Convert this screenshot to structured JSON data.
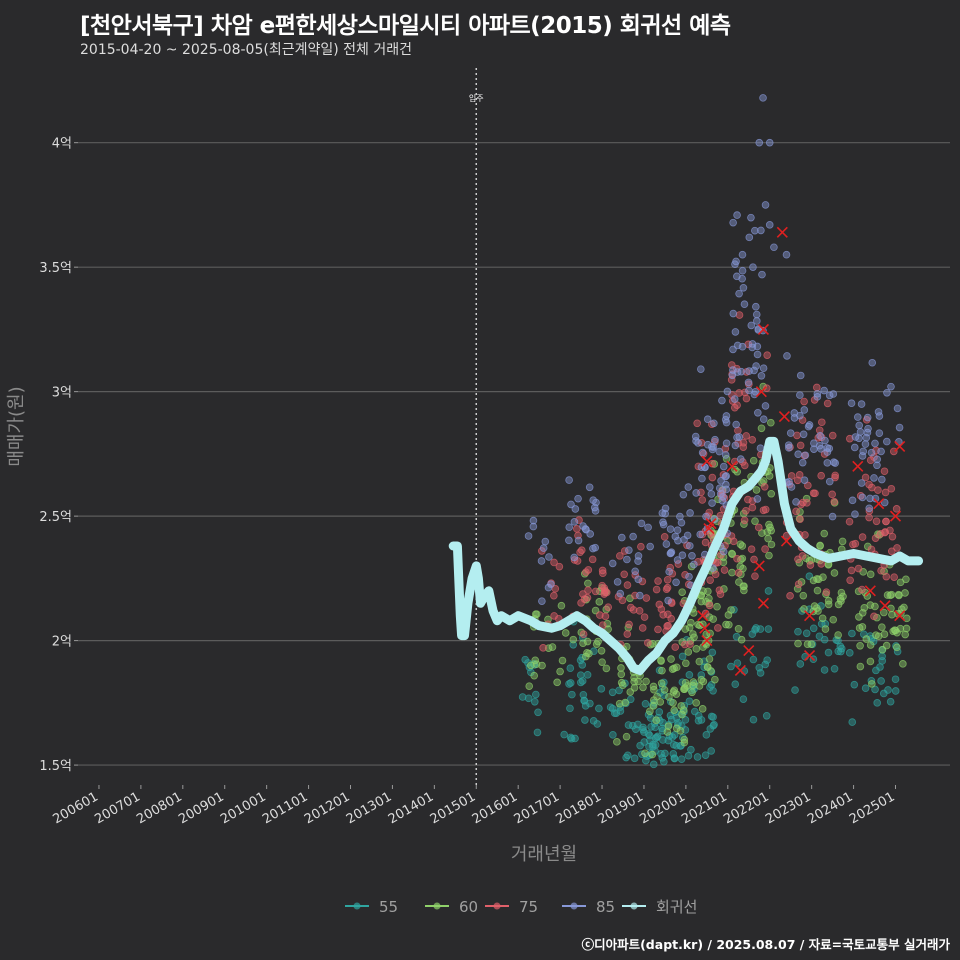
{
  "title": "[천안서북구] 차암 e편한세상스마일시티 아파트(2015) 회귀선 예측",
  "subtitle": "2015-04-20 ~ 2025-08-05(최근계약일) 전체 거래건",
  "footer": "ⓒ디아파트(dapt.kr) / 2025.08.07 / 자료=국토교통부 실거래가",
  "colors": {
    "background": "#2a2a2c",
    "grid": "#5c5c5c",
    "s55": "#2fa5a0",
    "s60": "#8fd16a",
    "s75": "#e0606a",
    "s85": "#8898d8",
    "trend": "#b4eef0",
    "marker": "#e02020"
  },
  "chart_data": {
    "type": "scatter",
    "title": "[천안서북구] 차암 e편한세상스마일시티 아파트(2015) 회귀선 예측",
    "xlabel": "거래년월",
    "ylabel": "매매가(원)",
    "xlim": [
      2005.5,
      2026.3
    ],
    "ylim": [
      1.42,
      4.3
    ],
    "x_ticks": [
      {
        "value": 2006.0,
        "label": "200601"
      },
      {
        "value": 2007.0,
        "label": "200701"
      },
      {
        "value": 2008.0,
        "label": "200801"
      },
      {
        "value": 2009.0,
        "label": "200901"
      },
      {
        "value": 2010.0,
        "label": "201001"
      },
      {
        "value": 2011.0,
        "label": "201101"
      },
      {
        "value": 2012.0,
        "label": "201201"
      },
      {
        "value": 2013.0,
        "label": "201301"
      },
      {
        "value": 2014.0,
        "label": "201401"
      },
      {
        "value": 2015.0,
        "label": "201501"
      },
      {
        "value": 2016.0,
        "label": "201601"
      },
      {
        "value": 2017.0,
        "label": "201701"
      },
      {
        "value": 2018.0,
        "label": "201801"
      },
      {
        "value": 2019.0,
        "label": "201901"
      },
      {
        "value": 2020.0,
        "label": "202001"
      },
      {
        "value": 2021.0,
        "label": "202101"
      },
      {
        "value": 2022.0,
        "label": "202201"
      },
      {
        "value": 2023.0,
        "label": "202301"
      },
      {
        "value": 2024.0,
        "label": "202401"
      },
      {
        "value": 2025.0,
        "label": "202501"
      }
    ],
    "y_ticks": [
      {
        "value": 1.5,
        "label": "1.5억"
      },
      {
        "value": 2.0,
        "label": "2억"
      },
      {
        "value": 2.5,
        "label": "2.5억"
      },
      {
        "value": 3.0,
        "label": "3억"
      },
      {
        "value": 3.5,
        "label": "3.5억"
      },
      {
        "value": 4.0,
        "label": "4억"
      }
    ],
    "annotation": {
      "x": 2015.0,
      "label": "입주"
    },
    "legend": {
      "position": "bottom",
      "entries": [
        {
          "label": "55",
          "key": "s55"
        },
        {
          "label": "60",
          "key": "s60"
        },
        {
          "label": "75",
          "key": "s75"
        },
        {
          "label": "85",
          "key": "s85"
        },
        {
          "label": "회귀선",
          "key": "trend"
        }
      ]
    },
    "series": [
      {
        "name": "55",
        "key": "s55",
        "clusters": [
          [
            2016.3,
            1.8,
            0.5,
            0.1,
            12
          ],
          [
            2017.5,
            1.8,
            1.0,
            0.12,
            30
          ],
          [
            2018.8,
            1.65,
            1.2,
            0.1,
            45
          ],
          [
            2019.5,
            1.62,
            0.8,
            0.09,
            45
          ],
          [
            2020.3,
            1.75,
            0.8,
            0.12,
            40
          ],
          [
            2021.5,
            1.95,
            1.0,
            0.12,
            20
          ],
          [
            2023.2,
            2.0,
            1.2,
            0.12,
            25
          ],
          [
            2024.5,
            1.9,
            1.2,
            0.1,
            25
          ]
        ]
      },
      {
        "name": "60",
        "key": "s60",
        "clusters": [
          [
            2016.7,
            2.0,
            0.9,
            0.12,
            18
          ],
          [
            2017.7,
            2.05,
            0.9,
            0.13,
            25
          ],
          [
            2018.8,
            1.85,
            0.9,
            0.12,
            30
          ],
          [
            2019.6,
            1.78,
            0.8,
            0.12,
            35
          ],
          [
            2020.3,
            2.05,
            0.8,
            0.15,
            55
          ],
          [
            2021.0,
            2.35,
            0.8,
            0.17,
            55
          ],
          [
            2021.8,
            2.6,
            0.5,
            0.2,
            25
          ],
          [
            2023.2,
            2.2,
            1.2,
            0.15,
            50
          ],
          [
            2024.7,
            2.1,
            1.2,
            0.13,
            55
          ]
        ]
      },
      {
        "name": "75",
        "key": "s75",
        "clusters": [
          [
            2016.7,
            2.2,
            0.6,
            0.12,
            10
          ],
          [
            2017.7,
            2.25,
            0.9,
            0.12,
            30
          ],
          [
            2018.7,
            2.2,
            0.9,
            0.12,
            20
          ],
          [
            2019.7,
            2.15,
            0.8,
            0.12,
            30
          ],
          [
            2020.6,
            2.45,
            0.7,
            0.17,
            50
          ],
          [
            2021.5,
            2.75,
            0.9,
            0.25,
            50
          ],
          [
            2023.0,
            2.6,
            1.2,
            0.2,
            45
          ],
          [
            2024.5,
            2.5,
            1.2,
            0.17,
            45
          ]
        ]
      },
      {
        "name": "85",
        "key": "s85",
        "clusters": [
          [
            2016.5,
            2.4,
            0.6,
            0.12,
            10
          ],
          [
            2017.5,
            2.5,
            0.9,
            0.1,
            20
          ],
          [
            2018.7,
            2.3,
            0.9,
            0.1,
            15
          ],
          [
            2019.8,
            2.4,
            0.8,
            0.15,
            30
          ],
          [
            2020.6,
            2.7,
            0.8,
            0.2,
            50
          ],
          [
            2021.5,
            3.2,
            0.8,
            0.3,
            55
          ],
          [
            2023.0,
            2.8,
            1.2,
            0.15,
            40
          ],
          [
            2024.5,
            2.8,
            1.2,
            0.15,
            40
          ]
        ]
      },
      {
        "name": "85-high",
        "key": "s85",
        "points": [
          [
            2021.84,
            4.18
          ],
          [
            2021.75,
            4.0
          ],
          [
            2022.0,
            4.0
          ],
          [
            2021.9,
            3.75
          ],
          [
            2022.0,
            3.67
          ],
          [
            2021.35,
            3.55
          ],
          [
            2021.6,
            3.5
          ],
          [
            2022.4,
            3.55
          ],
          [
            2022.1,
            3.58
          ]
        ]
      }
    ],
    "outliers": [
      [
        2020.5,
        2.72
      ],
      [
        2020.6,
        2.47
      ],
      [
        2020.55,
        2.45
      ],
      [
        2020.4,
        2.1
      ],
      [
        2020.45,
        2.05
      ],
      [
        2020.5,
        2.0
      ],
      [
        2021.1,
        2.7
      ],
      [
        2021.3,
        1.88
      ],
      [
        2021.5,
        1.96
      ],
      [
        2021.8,
        3.0
      ],
      [
        2021.85,
        3.25
      ],
      [
        2021.75,
        2.3
      ],
      [
        2021.85,
        2.15
      ],
      [
        2022.35,
        2.9
      ],
      [
        2022.4,
        2.4
      ],
      [
        2022.3,
        3.64
      ],
      [
        2022.95,
        1.94
      ],
      [
        2022.95,
        2.1
      ],
      [
        2024.1,
        2.7
      ],
      [
        2024.4,
        2.2
      ],
      [
        2024.6,
        2.55
      ],
      [
        2024.75,
        2.14
      ],
      [
        2025.0,
        2.5
      ],
      [
        2025.1,
        2.78
      ],
      [
        2025.1,
        2.1
      ]
    ],
    "trend": {
      "name": "회귀선",
      "points": [
        [
          2014.45,
          2.38
        ],
        [
          2014.55,
          2.38
        ],
        [
          2014.62,
          2.1
        ],
        [
          2014.65,
          2.02
        ],
        [
          2014.72,
          2.02
        ],
        [
          2014.8,
          2.15
        ],
        [
          2014.9,
          2.25
        ],
        [
          2015.0,
          2.3
        ],
        [
          2015.05,
          2.25
        ],
        [
          2015.1,
          2.15
        ],
        [
          2015.2,
          2.18
        ],
        [
          2015.3,
          2.2
        ],
        [
          2015.4,
          2.12
        ],
        [
          2015.5,
          2.08
        ],
        [
          2015.6,
          2.1
        ],
        [
          2015.8,
          2.08
        ],
        [
          2016.0,
          2.1
        ],
        [
          2016.3,
          2.08
        ],
        [
          2016.5,
          2.06
        ],
        [
          2016.8,
          2.05
        ],
        [
          2017.0,
          2.06
        ],
        [
          2017.2,
          2.08
        ],
        [
          2017.4,
          2.1
        ],
        [
          2017.6,
          2.08
        ],
        [
          2017.8,
          2.05
        ],
        [
          2018.0,
          2.03
        ],
        [
          2018.2,
          2.0
        ],
        [
          2018.4,
          1.97
        ],
        [
          2018.6,
          1.93
        ],
        [
          2018.75,
          1.89
        ],
        [
          2018.9,
          1.88
        ],
        [
          2019.1,
          1.92
        ],
        [
          2019.3,
          1.95
        ],
        [
          2019.5,
          2.0
        ],
        [
          2019.7,
          2.03
        ],
        [
          2019.9,
          2.08
        ],
        [
          2020.1,
          2.15
        ],
        [
          2020.3,
          2.23
        ],
        [
          2020.5,
          2.3
        ],
        [
          2020.7,
          2.38
        ],
        [
          2020.9,
          2.45
        ],
        [
          2021.1,
          2.55
        ],
        [
          2021.3,
          2.6
        ],
        [
          2021.5,
          2.62
        ],
        [
          2021.65,
          2.65
        ],
        [
          2021.8,
          2.68
        ],
        [
          2021.9,
          2.72
        ],
        [
          2022.0,
          2.8
        ],
        [
          2022.1,
          2.8
        ],
        [
          2022.2,
          2.72
        ],
        [
          2022.35,
          2.55
        ],
        [
          2022.5,
          2.45
        ],
        [
          2022.7,
          2.4
        ],
        [
          2022.9,
          2.37
        ],
        [
          2023.1,
          2.35
        ],
        [
          2023.4,
          2.33
        ],
        [
          2023.7,
          2.34
        ],
        [
          2024.0,
          2.35
        ],
        [
          2024.3,
          2.34
        ],
        [
          2024.6,
          2.33
        ],
        [
          2024.9,
          2.32
        ],
        [
          2025.1,
          2.34
        ],
        [
          2025.3,
          2.32
        ],
        [
          2025.55,
          2.32
        ]
      ]
    }
  }
}
